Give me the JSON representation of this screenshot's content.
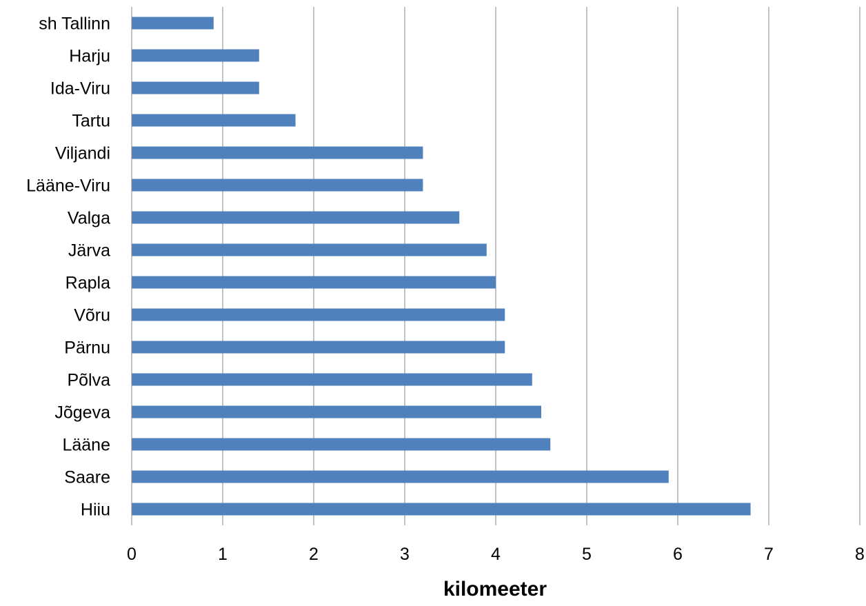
{
  "chart_data": {
    "type": "bar",
    "orientation": "horizontal",
    "categories": [
      "sh Tallinn",
      "Harju",
      "Ida-Viru",
      "Tartu",
      "Viljandi",
      "Lääne-Viru",
      "Valga",
      "Järva",
      "Rapla",
      "Võru",
      "Pärnu",
      "Põlva",
      "Jõgeva",
      "Lääne",
      "Saare",
      "Hiiu"
    ],
    "values": [
      0.9,
      1.4,
      1.4,
      1.8,
      3.2,
      3.2,
      3.6,
      3.9,
      4.0,
      4.1,
      4.1,
      4.4,
      4.5,
      4.6,
      5.9,
      6.8
    ],
    "xlabel": "kilomeeter",
    "ylabel": "",
    "xlim": [
      0,
      8
    ],
    "xticks": [
      "0",
      "1",
      "2",
      "3",
      "4",
      "5",
      "6",
      "7",
      "8"
    ],
    "grid": "vertical major gridlines",
    "legend": "none",
    "bar_color": "#4F81BD",
    "gridline_color": "#868686"
  }
}
